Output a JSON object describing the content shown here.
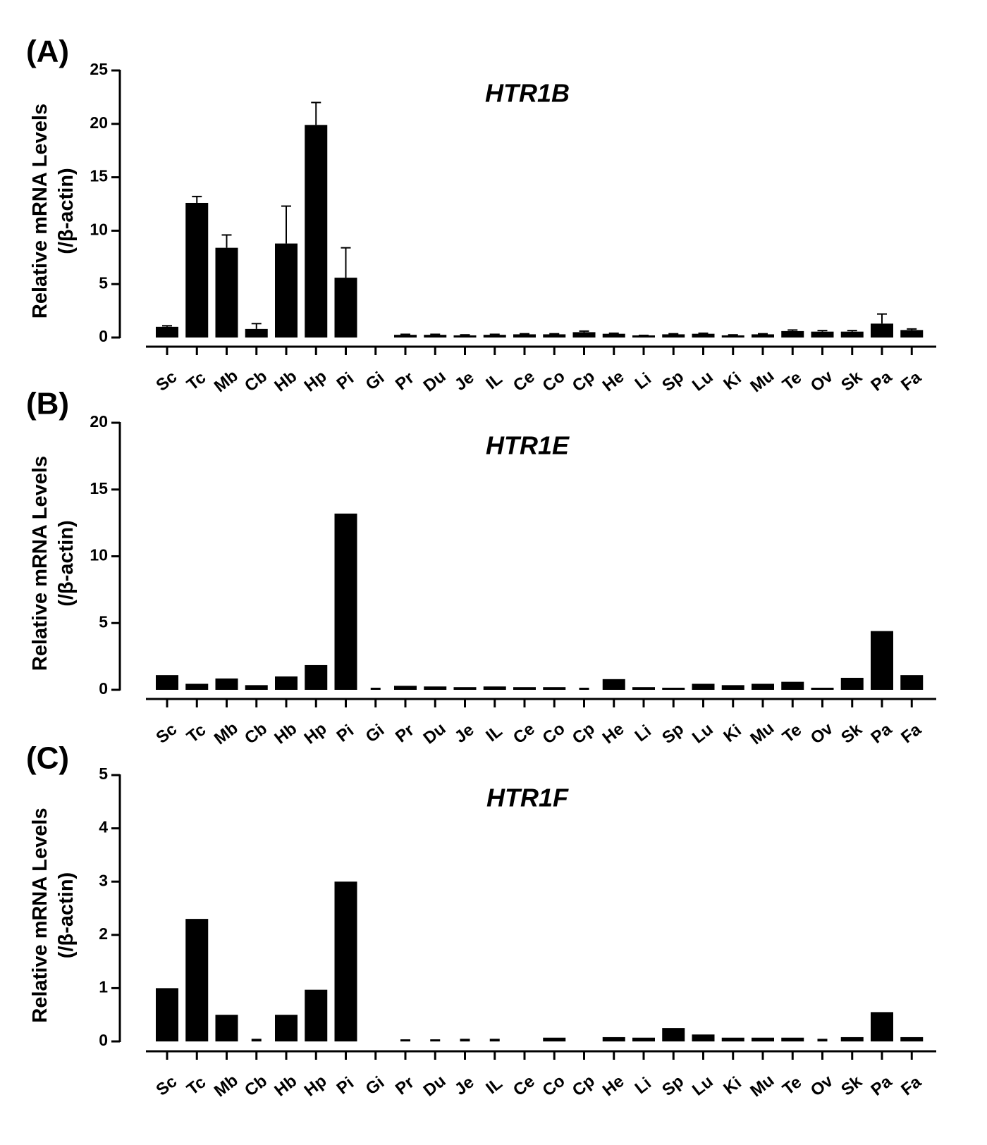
{
  "colors": {
    "bar": "#000000",
    "axis": "#000000",
    "background": "#ffffff"
  },
  "chart_data": [
    {
      "type": "bar",
      "panel": "(A)",
      "title": "HTR1B",
      "ylabel_line1": "Relative  mRNA Levels",
      "ylabel_line2": "(/β-actin)",
      "xlabel": "",
      "ylim": [
        0,
        25
      ],
      "yticks": [
        0,
        5,
        10,
        15,
        20,
        25
      ],
      "categories": [
        "Sc",
        "Tc",
        "Mb",
        "Cb",
        "Hb",
        "Hp",
        "Pi",
        "Gi",
        "Pr",
        "Du",
        "Je",
        "IL",
        "Ce",
        "Co",
        "Cp",
        "He",
        "Li",
        "Sp",
        "Lu",
        "Ki",
        "Mu",
        "Te",
        "Ov",
        "Sk",
        "Pa",
        "Fa"
      ],
      "values": [
        1.0,
        12.6,
        8.4,
        0.8,
        8.8,
        19.9,
        5.6,
        0.0,
        0.25,
        0.25,
        0.2,
        0.25,
        0.3,
        0.3,
        0.5,
        0.35,
        0.15,
        0.3,
        0.35,
        0.2,
        0.3,
        0.6,
        0.55,
        0.55,
        1.3,
        0.7
      ],
      "errors": [
        0.1,
        0.6,
        1.2,
        0.5,
        3.5,
        2.1,
        2.8,
        0.0,
        0.05,
        0.05,
        0.05,
        0.05,
        0.05,
        0.05,
        0.1,
        0.05,
        0.05,
        0.05,
        0.05,
        0.05,
        0.05,
        0.1,
        0.1,
        0.1,
        0.9,
        0.1
      ]
    },
    {
      "type": "bar",
      "panel": "(B)",
      "title": "HTR1E",
      "ylabel_line1": "Relative  mRNA Levels",
      "ylabel_line2": "(/β-actin)",
      "xlabel": "",
      "ylim": [
        0,
        20
      ],
      "yticks": [
        0,
        5,
        10,
        15,
        20
      ],
      "categories": [
        "Sc",
        "Tc",
        "Mb",
        "Cb",
        "Hb",
        "Hp",
        "Pi",
        "Gi",
        "Pr",
        "Du",
        "Je",
        "IL",
        "Ce",
        "Co",
        "Cp",
        "He",
        "Li",
        "Sp",
        "Lu",
        "Ki",
        "Mu",
        "Te",
        "Ov",
        "Sk",
        "Pa",
        "Fa"
      ],
      "values": [
        1.1,
        0.45,
        0.85,
        0.35,
        1.0,
        1.85,
        13.2,
        0.05,
        0.3,
        0.25,
        0.2,
        0.25,
        0.2,
        0.2,
        0.05,
        0.8,
        0.2,
        0.15,
        0.45,
        0.35,
        0.45,
        0.6,
        0.15,
        0.9,
        4.4,
        1.1
      ]
    },
    {
      "type": "bar",
      "panel": "(C)",
      "title": "HTR1F",
      "ylabel_line1": "Relative  mRNA Levels",
      "ylabel_line2": "(/β-actin)",
      "xlabel": "",
      "ylim": [
        0,
        5
      ],
      "yticks": [
        0,
        1,
        2,
        3,
        4,
        5
      ],
      "categories": [
        "Sc",
        "Tc",
        "Mb",
        "Cb",
        "Hb",
        "Hp",
        "Pi",
        "Gi",
        "Pr",
        "Du",
        "Je",
        "IL",
        "Ce",
        "Co",
        "Cp",
        "He",
        "Li",
        "Sp",
        "Lu",
        "Ki",
        "Mu",
        "Te",
        "Ov",
        "Sk",
        "Pa",
        "Fa"
      ],
      "values": [
        1.0,
        2.3,
        0.5,
        0.05,
        0.5,
        0.97,
        3.0,
        0.0,
        0.02,
        0.02,
        0.05,
        0.05,
        0.0,
        0.07,
        0.0,
        0.08,
        0.07,
        0.25,
        0.13,
        0.07,
        0.07,
        0.07,
        0.05,
        0.08,
        0.55,
        0.08
      ]
    }
  ]
}
